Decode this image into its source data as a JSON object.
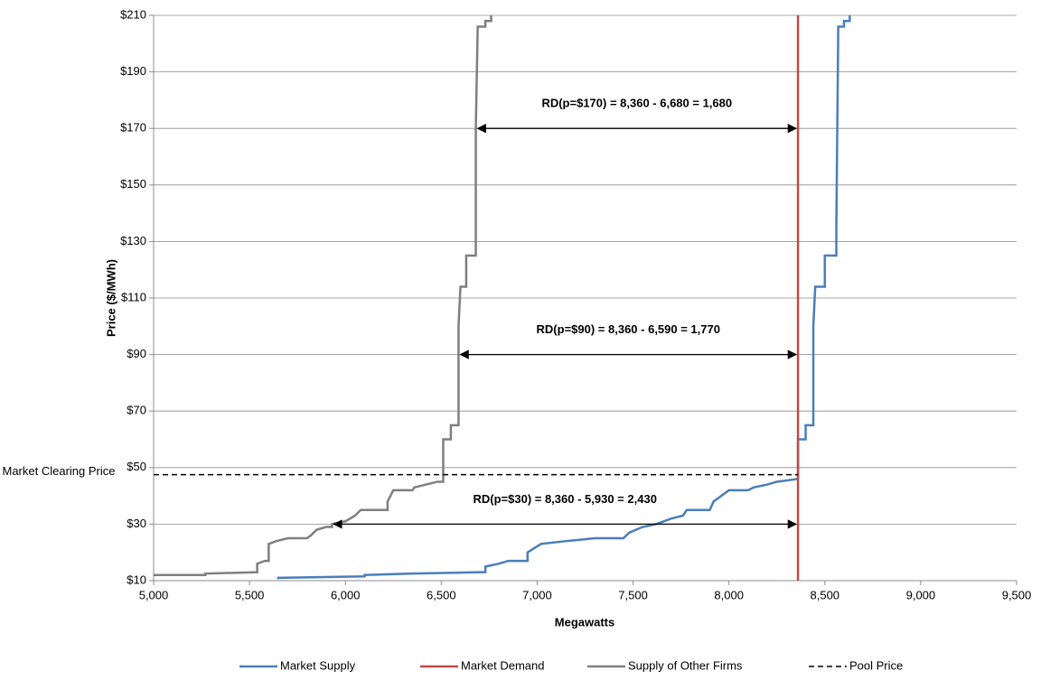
{
  "chart_data": {
    "type": "line",
    "y_axis_title": "Price ($/MWh)",
    "x_axis_title": "Megawatts",
    "xlim": [
      5000,
      9500
    ],
    "xticks": [
      {
        "value": 5000,
        "label": "5,000"
      },
      {
        "value": 5500,
        "label": "5,500"
      },
      {
        "value": 6000,
        "label": "6,000"
      },
      {
        "value": 6500,
        "label": "6,500"
      },
      {
        "value": 7000,
        "label": "7,000"
      },
      {
        "value": 7500,
        "label": "7,500"
      },
      {
        "value": 8000,
        "label": "8,000"
      },
      {
        "value": 8500,
        "label": "8,500"
      },
      {
        "value": 9000,
        "label": "9,000"
      },
      {
        "value": 9500,
        "label": "9,500"
      }
    ],
    "ylim": [
      10,
      210
    ],
    "yticks": [
      {
        "value": 10,
        "label": "$10"
      },
      {
        "value": 30,
        "label": "$30"
      },
      {
        "value": 50,
        "label": "$50"
      },
      {
        "value": 70,
        "label": "$70"
      },
      {
        "value": 90,
        "label": "$90"
      },
      {
        "value": 110,
        "label": "$110"
      },
      {
        "value": 130,
        "label": "$130"
      },
      {
        "value": 150,
        "label": "$150"
      },
      {
        "value": 170,
        "label": "$170"
      },
      {
        "value": 190,
        "label": "$190"
      },
      {
        "value": 210,
        "label": "$210"
      }
    ],
    "grid": true,
    "legend": "bottom",
    "series": [
      {
        "name": "Market Supply",
        "color": "#4a7ebb",
        "line_style": "solid",
        "x": [
          5650,
          5650,
          6100,
          6100,
          6350,
          6700,
          6730,
          6730,
          6800,
          6850,
          6950,
          6950,
          7020,
          7150,
          7300,
          7450,
          7480,
          7550,
          7620,
          7700,
          7760,
          7780,
          7900,
          7920,
          8000,
          8100,
          8130,
          8200,
          8250,
          8360,
          8360,
          8400,
          8400,
          8440,
          8440,
          8450,
          8500,
          8500,
          8560,
          8560,
          8570,
          8600,
          8600,
          8630,
          8630
        ],
        "values": [
          10.5,
          11,
          11.5,
          12,
          12.5,
          13,
          13,
          15,
          16,
          17,
          17,
          20,
          23,
          24,
          25,
          25,
          27,
          29,
          30,
          32,
          33,
          35,
          35,
          38,
          42,
          42,
          43,
          44,
          45,
          46,
          60,
          60,
          65,
          65,
          100,
          114,
          114,
          125,
          125,
          135,
          206,
          206,
          208,
          208,
          210
        ]
      },
      {
        "name": "Market Demand",
        "color": "#be4b48",
        "line_style": "solid",
        "x": [
          8360,
          8360
        ],
        "values": [
          10,
          210
        ]
      },
      {
        "name": "Supply of Other Firms",
        "color": "#7f7f7f",
        "line_style": "solid",
        "x": [
          5000,
          5270,
          5270,
          5540,
          5540,
          5580,
          5600,
          5600,
          5640,
          5700,
          5800,
          5820,
          5850,
          5900,
          5930,
          5930,
          6000,
          6050,
          6080,
          6220,
          6220,
          6250,
          6350,
          6360,
          6480,
          6510,
          6510,
          6550,
          6550,
          6590,
          6590,
          6600,
          6630,
          6630,
          6680,
          6680,
          6690,
          6730,
          6730,
          6760,
          6760
        ],
        "values": [
          12,
          12,
          12.5,
          13,
          16,
          17,
          17,
          23,
          24,
          25,
          25,
          26,
          28,
          29,
          29,
          30,
          31,
          33,
          35,
          35,
          38,
          42,
          42,
          43,
          45,
          45,
          60,
          60,
          65,
          65,
          100,
          114,
          114,
          125,
          125,
          170,
          206,
          206,
          208,
          208,
          210
        ]
      },
      {
        "name": "Pool Price",
        "color": "#000000",
        "line_style": "dashed",
        "x": [
          5000,
          8360
        ],
        "values": [
          47.5,
          47.5
        ]
      }
    ],
    "pool_price_label": "Market Clearing Price",
    "annotations": [
      {
        "text": "RD(p=$170) = 8,360 - 6,680 = 1,680",
        "y": 170,
        "x": [
          6680,
          8360
        ]
      },
      {
        "text": "RD(p=$90) = 8,360 - 6,590 = 1,770",
        "y": 90,
        "x": [
          6590,
          8360
        ]
      },
      {
        "text": "RD(p=$30) = 8,360 - 5,930 = 2,430",
        "y": 30,
        "x": [
          5930,
          8360
        ]
      }
    ]
  }
}
